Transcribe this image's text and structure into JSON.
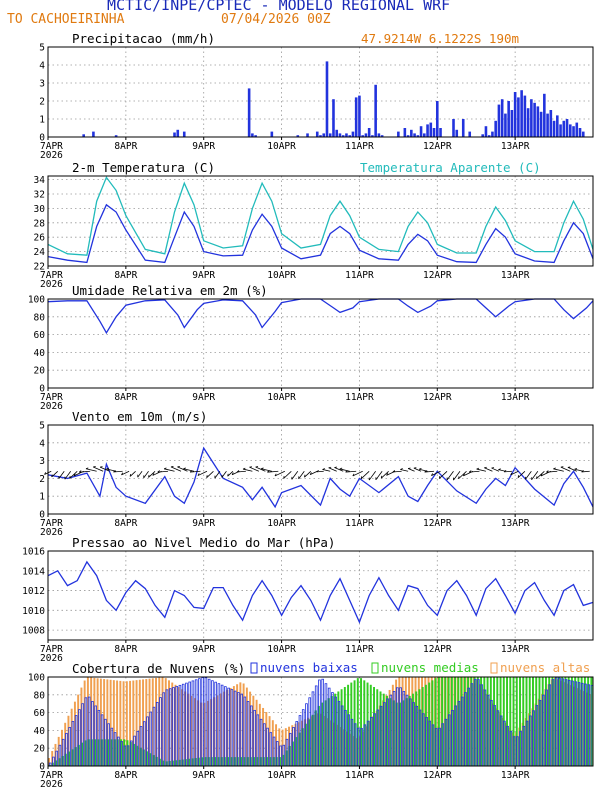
{
  "header": {
    "institution": "MCTIC/INPE/CPTEC - MODELO REGIONAL WRF",
    "location": "TO CACHOEIRINHA",
    "run": "07/04/2026 00Z",
    "coords": "47.9214W 6.1222S 190m"
  },
  "colors": {
    "blue": "#2233dd",
    "cyan": "#22bbbb",
    "orange": "#f0a050",
    "green": "#33cc22",
    "title_blue": "#1a2ab8",
    "header_orange": "#e07a10"
  },
  "x_axis": {
    "day_labels": [
      "7APR",
      "8APR",
      "9APR",
      "10APR",
      "11APR",
      "12APR",
      "13APR"
    ],
    "year_label": "2026",
    "hours_per_day": 24,
    "total_hours": 168
  },
  "chart_data": [
    {
      "type": "bar",
      "title": "Precipitacao (mm/h)",
      "ylim": [
        0,
        5
      ],
      "yticks": [
        0,
        1,
        2,
        3,
        4,
        5
      ],
      "units": "mm/h",
      "series": [
        {
          "name": "precipitacao",
          "x_hours": [
            11,
            14,
            21,
            39,
            40,
            42,
            62,
            63,
            64,
            69,
            77,
            80,
            83,
            84,
            85,
            86,
            87,
            88,
            89,
            90,
            91,
            92,
            93,
            94,
            95,
            96,
            97,
            98,
            99,
            100,
            101,
            102,
            103,
            108,
            110,
            111,
            112,
            113,
            114,
            115,
            116,
            117,
            118,
            119,
            120,
            121,
            125,
            126,
            128,
            130,
            134,
            135,
            136,
            137,
            138,
            139,
            140,
            141,
            142,
            143,
            144,
            145,
            146,
            147,
            148,
            149,
            150,
            151,
            152,
            153,
            154,
            155,
            156,
            157,
            158,
            159,
            160,
            161,
            162,
            163,
            164,
            165
          ],
          "values": [
            0.15,
            0.3,
            0.1,
            0.25,
            0.4,
            0.3,
            2.7,
            0.2,
            0.1,
            0.3,
            0.1,
            0.2,
            0.3,
            0.1,
            0.2,
            4.2,
            0.2,
            2.1,
            0.4,
            0.2,
            0.1,
            0.2,
            0.1,
            0.3,
            2.2,
            2.3,
            0.1,
            0.2,
            0.5,
            0.1,
            2.9,
            0.2,
            0.1,
            0.3,
            0.5,
            0.1,
            0.4,
            0.2,
            0.1,
            0.6,
            0.2,
            0.7,
            0.8,
            0.5,
            2.0,
            0.5,
            1.0,
            0.4,
            1.0,
            0.3,
            0.15,
            0.6,
            0.1,
            0.3,
            0.9,
            1.8,
            2.1,
            1.3,
            2.0,
            1.5,
            2.5,
            2.2,
            2.6,
            2.3,
            1.6,
            2.1,
            1.9,
            1.7,
            1.4,
            2.4,
            1.3,
            1.5,
            0.9,
            1.2,
            0.7,
            0.9,
            1.0,
            0.7,
            0.6,
            0.8,
            0.5,
            0.3
          ]
        }
      ]
    },
    {
      "type": "line",
      "title": "2-m Temperatura (C)",
      "ylim": [
        22,
        34.5
      ],
      "yticks": [
        22,
        24,
        26,
        28,
        30,
        32,
        34
      ],
      "series": [
        {
          "name": "2-m Temperatura (C)",
          "x_hours": [
            0,
            6,
            12,
            15,
            18,
            21,
            24,
            30,
            36,
            39,
            42,
            45,
            48,
            54,
            60,
            63,
            66,
            69,
            72,
            78,
            84,
            87,
            90,
            93,
            96,
            102,
            108,
            111,
            114,
            117,
            120,
            126,
            132,
            135,
            138,
            141,
            144,
            150,
            156,
            159,
            162,
            165,
            168
          ],
          "values": [
            23.3,
            22.8,
            22.5,
            27.5,
            30.5,
            29.5,
            27,
            22.8,
            22.5,
            26,
            29.5,
            27.5,
            24,
            23.4,
            23.5,
            27,
            29.2,
            27.5,
            24.5,
            23,
            23.5,
            26.5,
            27.5,
            26.5,
            24.2,
            23,
            22.8,
            25,
            26.4,
            25.5,
            23.5,
            22.6,
            22.5,
            25,
            27.2,
            26,
            23.7,
            22.7,
            22.5,
            25.5,
            28,
            26.5,
            23
          ]
        },
        {
          "name": "Temperatura Aparente (C)",
          "x_hours": [
            0,
            6,
            12,
            15,
            18,
            21,
            24,
            30,
            36,
            39,
            42,
            45,
            48,
            54,
            60,
            63,
            66,
            69,
            72,
            78,
            84,
            87,
            90,
            93,
            96,
            102,
            108,
            111,
            114,
            117,
            120,
            126,
            132,
            135,
            138,
            141,
            144,
            150,
            156,
            159,
            162,
            165,
            168
          ],
          "values": [
            25,
            23.7,
            23.5,
            31,
            34.3,
            32.5,
            29,
            24.3,
            23.7,
            29.5,
            33.5,
            30.5,
            25.5,
            24.5,
            24.8,
            30,
            33.5,
            31,
            26.5,
            24.5,
            25,
            29,
            31,
            29,
            26,
            24.3,
            24,
            27.5,
            29.5,
            28,
            25,
            23.8,
            23.8,
            27.5,
            30.2,
            28.3,
            25.5,
            24,
            24,
            28,
            31,
            28.5,
            24.3
          ]
        }
      ]
    },
    {
      "type": "line",
      "title": "Umidade Relativa em 2m (%)",
      "ylim": [
        0,
        100
      ],
      "yticks": [
        0,
        20,
        40,
        60,
        80,
        100
      ],
      "series": [
        {
          "name": "umidade",
          "x_hours": [
            0,
            6,
            12,
            16,
            18,
            21,
            24,
            30,
            36,
            40,
            42,
            46,
            48,
            54,
            60,
            64,
            66,
            70,
            72,
            78,
            84,
            88,
            90,
            94,
            96,
            102,
            108,
            111,
            114,
            118,
            120,
            126,
            132,
            135,
            138,
            142,
            144,
            150,
            156,
            159,
            162,
            166,
            168
          ],
          "values": [
            97,
            98,
            98,
            75,
            62,
            80,
            93,
            98,
            99,
            82,
            68,
            88,
            95,
            99,
            98,
            82,
            68,
            86,
            96,
            100,
            100,
            90,
            85,
            90,
            97,
            100,
            100,
            92,
            85,
            92,
            98,
            100,
            100,
            90,
            80,
            92,
            97,
            100,
            100,
            88,
            78,
            90,
            98
          ]
        }
      ]
    },
    {
      "type": "line",
      "title": "Vento em 10m (m/s)",
      "ylim": [
        0,
        5
      ],
      "yticks": [
        0,
        1,
        2,
        3,
        4,
        5
      ],
      "series": [
        {
          "name": "velocidade",
          "x_hours": [
            0,
            6,
            12,
            16,
            18,
            21,
            24,
            30,
            36,
            39,
            42,
            45,
            48,
            54,
            60,
            63,
            66,
            70,
            72,
            78,
            84,
            87,
            90,
            93,
            96,
            102,
            108,
            111,
            114,
            117,
            120,
            126,
            132,
            135,
            138,
            141,
            144,
            150,
            156,
            159,
            162,
            165,
            168
          ],
          "values": [
            2.2,
            2.0,
            2.3,
            1.0,
            2.8,
            1.5,
            1.0,
            0.6,
            2.1,
            1.0,
            0.6,
            1.8,
            3.7,
            2.0,
            1.5,
            0.8,
            1.5,
            0.4,
            1.2,
            1.6,
            0.5,
            2.0,
            1.4,
            1.0,
            2.0,
            1.2,
            2.1,
            1.0,
            0.7,
            1.6,
            2.4,
            1.3,
            0.6,
            1.4,
            2.0,
            1.6,
            2.6,
            1.4,
            0.5,
            1.7,
            2.4,
            1.5,
            0.4
          ]
        }
      ]
    },
    {
      "type": "line",
      "title": "Pressao ao Nivel Medio do Mar (hPa)",
      "ylim": [
        1007,
        1016
      ],
      "yticks": [
        1008,
        1010,
        1012,
        1014,
        1016
      ],
      "series": [
        {
          "name": "pressao",
          "x_hours": [
            0,
            3,
            6,
            9,
            12,
            15,
            18,
            21,
            24,
            27,
            30,
            33,
            36,
            39,
            42,
            45,
            48,
            51,
            54,
            57,
            60,
            63,
            66,
            69,
            72,
            75,
            78,
            81,
            84,
            87,
            90,
            93,
            96,
            99,
            102,
            105,
            108,
            111,
            114,
            117,
            120,
            123,
            126,
            129,
            132,
            135,
            138,
            141,
            144,
            147,
            150,
            153,
            156,
            159,
            162,
            165,
            168
          ],
          "values": [
            1013.5,
            1014,
            1012.5,
            1013,
            1014.9,
            1013.5,
            1011,
            1010,
            1011.8,
            1013,
            1012.2,
            1010.5,
            1009.3,
            1012,
            1011.5,
            1010.3,
            1010.2,
            1012.3,
            1012.3,
            1010.5,
            1009,
            1011.5,
            1013,
            1011.5,
            1009.5,
            1011.3,
            1012.5,
            1011,
            1009,
            1011.5,
            1013.2,
            1011,
            1008.8,
            1011.5,
            1013.3,
            1011.5,
            1010,
            1012.5,
            1012.2,
            1010.5,
            1009.5,
            1012,
            1013,
            1011.5,
            1009.5,
            1012.2,
            1013.2,
            1011.5,
            1009.7,
            1012,
            1012.8,
            1011,
            1009.5,
            1012,
            1012.6,
            1010.5,
            1010.8
          ]
        }
      ]
    },
    {
      "type": "bar",
      "title": "Cobertura de Nuvens (%)",
      "ylim": [
        0,
        100
      ],
      "yticks": [
        0,
        20,
        40,
        60,
        80,
        100
      ],
      "legend": [
        "nuvens baixas",
        "nuvens medias",
        "nuvens altas"
      ],
      "series": [
        {
          "name": "nuvens altas",
          "x_hours": [
            0,
            12,
            24,
            36,
            48,
            60,
            72,
            84,
            96,
            108,
            120,
            132,
            144,
            156,
            168
          ],
          "values": [
            5,
            100,
            95,
            100,
            70,
            95,
            40,
            60,
            30,
            100,
            100,
            100,
            35,
            100,
            80
          ]
        },
        {
          "name": "nuvens medias",
          "x_hours": [
            0,
            12,
            24,
            36,
            48,
            60,
            72,
            84,
            96,
            108,
            120,
            132,
            144,
            156,
            168
          ],
          "values": [
            0,
            30,
            30,
            5,
            10,
            10,
            10,
            70,
            100,
            70,
            100,
            100,
            100,
            100,
            100
          ]
        },
        {
          "name": "nuvens baixas",
          "x_hours": [
            0,
            12,
            24,
            36,
            48,
            60,
            72,
            84,
            96,
            108,
            120,
            132,
            144,
            156,
            168
          ],
          "values": [
            0,
            80,
            20,
            85,
            100,
            80,
            20,
            100,
            40,
            90,
            40,
            100,
            30,
            100,
            90
          ]
        }
      ]
    }
  ]
}
